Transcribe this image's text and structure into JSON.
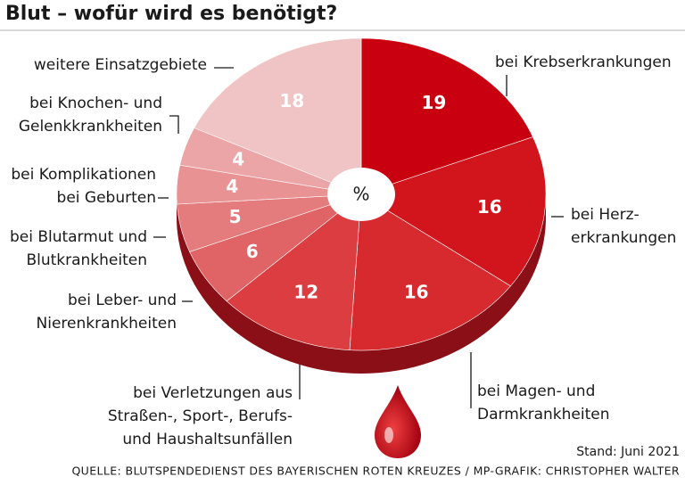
{
  "chart_data": {
    "type": "pie",
    "title": "Blut – wofür wird es benötigt?",
    "center_label": "%",
    "categories": [
      [
        "bei Krebserkrankungen"
      ],
      [
        "bei Herz-",
        "erkrankungen"
      ],
      [
        "bei Magen- und",
        "Darmkrankheiten"
      ],
      [
        "bei Verletzungen aus",
        "Straßen-, Sport-, Berufs-",
        "und Haushaltsunfällen"
      ],
      [
        "bei Leber- und",
        "Nierenkrankheiten"
      ],
      [
        "bei Blutarmut und",
        "Blutkrankheiten"
      ],
      [
        "bei Komplikationen",
        "bei Geburten"
      ],
      [
        "bei Knochen- und",
        "Gelenkkrankheiten"
      ],
      [
        "weitere Einsatzgebiete"
      ]
    ],
    "values": [
      19,
      16,
      16,
      12,
      6,
      5,
      4,
      4,
      18
    ],
    "colors": [
      "#c8000f",
      "#d2141c",
      "#d62a2e",
      "#db3d40",
      "#e06466",
      "#e47b7d",
      "#e89294",
      "#eba5a7",
      "#f0c4c5"
    ],
    "note": "Stand: Juni 2021",
    "source": "QUELLE: BLUTSPENDEDIENST DES BAYERISCHEN ROTEN KREUZES / MP-GRAFIK: CHRISTOPHER WALTER"
  }
}
